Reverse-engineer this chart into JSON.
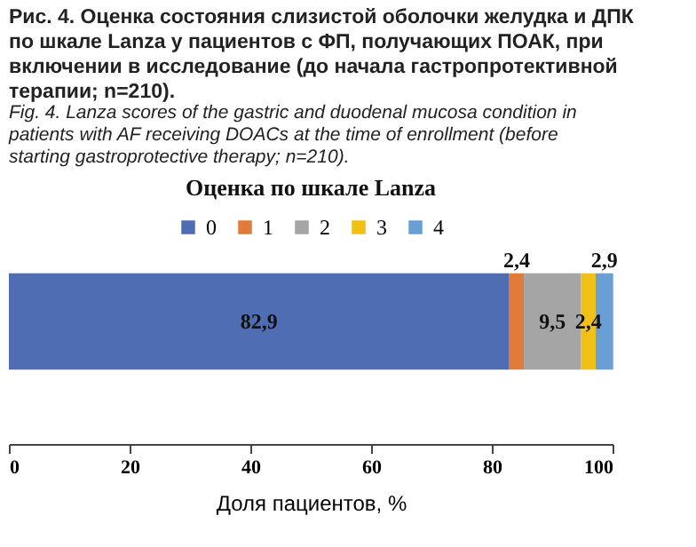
{
  "chart_data": {
    "type": "bar",
    "orientation": "horizontal",
    "stacked": true,
    "title": "Оценка по шкале Lanza",
    "annotations": [
      "Рис. 4. Оценка состояния слизистой оболочки желудка и ДПК по шкале Lanza у пациентов с ФП, получающих ПОАК, при включении в исследование (до начала гастропротективной терапии; n=210).",
      "Fig. 4. Lanza scores of the gastric and duodenal mucosa condition in patients with AF receiving DOACs at the time of enrollment (before starting gastroprotective therapy; n=210)."
    ],
    "categories": [
      null
    ],
    "series": [
      {
        "name": "0",
        "color": "#4f6db3",
        "values": [
          82.9
        ],
        "value_labels": [
          "82,9"
        ]
      },
      {
        "name": "1",
        "color": "#e07b39",
        "values": [
          2.4
        ],
        "value_labels": [
          "2,4"
        ]
      },
      {
        "name": "2",
        "color": "#a5a5a5",
        "values": [
          9.5
        ],
        "value_labels": [
          "9,5"
        ]
      },
      {
        "name": "3",
        "color": "#f2c014",
        "values": [
          2.4
        ],
        "value_labels": [
          "2,4"
        ]
      },
      {
        "name": "4",
        "color": "#6a9fd6",
        "values": [
          2.9
        ],
        "value_labels": [
          "2,9"
        ]
      }
    ],
    "xlabel": "Доля пациентов, %",
    "xlim": [
      0,
      100
    ],
    "xticks": [
      0,
      20,
      40,
      60,
      80,
      100
    ],
    "grid": false,
    "legend": "top",
    "tick_labels": "x"
  }
}
